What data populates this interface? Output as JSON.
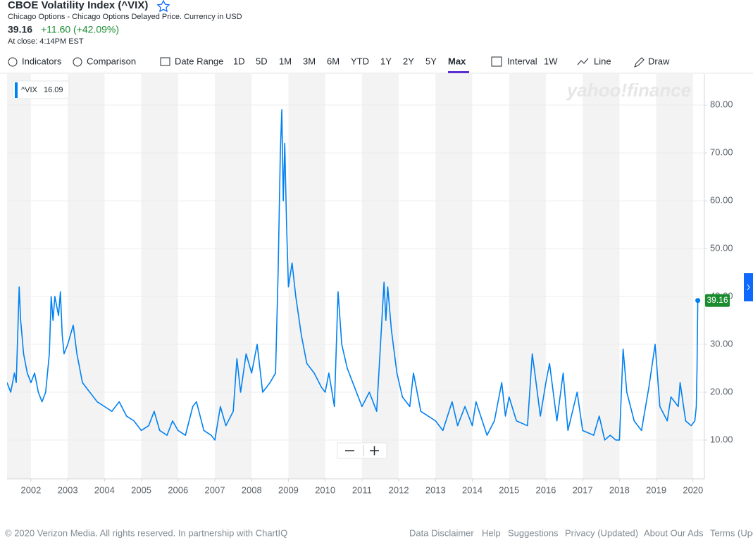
{
  "header": {
    "title": "CBOE Volatility Index (^VIX)",
    "subtitle": "Chicago Options - Chicago Options Delayed Price. Currency in USD",
    "price": "39.16",
    "change": "+11.60 (+42.09%)",
    "close_time": "At close: 4:14PM EST"
  },
  "toolbar": {
    "indicators": "Indicators",
    "comparison": "Comparison",
    "date_range": "Date Range",
    "ranges": [
      "1D",
      "5D",
      "1M",
      "3M",
      "6M",
      "YTD",
      "1Y",
      "2Y",
      "5Y",
      "Max"
    ],
    "interval": "Interval",
    "interval_value": "1W",
    "line": "Line",
    "draw": "Draw"
  },
  "watermark": "yahoo!finance",
  "chart_data": {
    "type": "line",
    "legend_value": "16.09",
    "xlim": [
      2001.35,
      2020.31
    ],
    "xticks": [
      2002,
      2003,
      2004,
      2005,
      2006,
      2007,
      2008,
      2009,
      2010,
      2011,
      2012,
      2013,
      2014,
      2015,
      2016,
      2017,
      2018,
      2019,
      2020
    ],
    "ylim": [
      1.9,
      86.5
    ],
    "yticks": [
      {
        "value": 10,
        "label": "10.00"
      },
      {
        "value": 20,
        "label": "20.00"
      },
      {
        "value": 30,
        "label": "30.00"
      },
      {
        "value": 40,
        "label": "40.00"
      },
      {
        "value": 50,
        "label": "50.00"
      },
      {
        "value": 60,
        "label": "60.00"
      },
      {
        "value": 70,
        "label": "70.00"
      },
      {
        "value": 80,
        "label": "80.00"
      }
    ],
    "grid": true,
    "series": [
      {
        "name": "^VIX",
        "color": "#0081f2",
        "x": [
          2001.35,
          2001.45,
          2001.55,
          2001.6,
          2001.68,
          2001.72,
          2001.8,
          2001.9,
          2002.0,
          2002.1,
          2002.2,
          2002.3,
          2002.4,
          2002.5,
          2002.55,
          2002.6,
          2002.65,
          2002.75,
          2002.8,
          2002.85,
          2002.9,
          2003.0,
          2003.15,
          2003.25,
          2003.4,
          2003.6,
          2003.8,
          2004.0,
          2004.2,
          2004.4,
          2004.6,
          2004.8,
          2005.0,
          2005.2,
          2005.35,
          2005.5,
          2005.7,
          2005.85,
          2006.0,
          2006.2,
          2006.4,
          2006.5,
          2006.7,
          2006.9,
          2007.0,
          2007.15,
          2007.3,
          2007.5,
          2007.6,
          2007.7,
          2007.85,
          2008.0,
          2008.15,
          2008.3,
          2008.5,
          2008.65,
          2008.72,
          2008.78,
          2008.82,
          2008.86,
          2008.9,
          2008.95,
          2009.0,
          2009.1,
          2009.2,
          2009.35,
          2009.5,
          2009.7,
          2009.9,
          2010.0,
          2010.1,
          2010.25,
          2010.35,
          2010.45,
          2010.6,
          2010.8,
          2011.0,
          2011.2,
          2011.4,
          2011.6,
          2011.65,
          2011.7,
          2011.8,
          2011.95,
          2012.1,
          2012.3,
          2012.4,
          2012.6,
          2012.8,
          2013.0,
          2013.2,
          2013.45,
          2013.6,
          2013.8,
          2014.0,
          2014.1,
          2014.4,
          2014.6,
          2014.8,
          2014.9,
          2015.0,
          2015.2,
          2015.5,
          2015.63,
          2015.7,
          2015.85,
          2016.0,
          2016.1,
          2016.3,
          2016.47,
          2016.6,
          2016.85,
          2017.0,
          2017.3,
          2017.45,
          2017.6,
          2017.75,
          2017.9,
          2018.0,
          2018.1,
          2018.2,
          2018.4,
          2018.6,
          2018.8,
          2018.97,
          2019.1,
          2019.3,
          2019.4,
          2019.6,
          2019.65,
          2019.8,
          2019.95,
          2020.05,
          2020.09,
          2020.11,
          2020.13
        ],
        "values": [
          22,
          20,
          24,
          22,
          42,
          35,
          28,
          24,
          22,
          24,
          20,
          18,
          20,
          28,
          40,
          35,
          40,
          36,
          41,
          32,
          28,
          30,
          34,
          28,
          22,
          20,
          18,
          17,
          16,
          18,
          15,
          14,
          12,
          13,
          16,
          12,
          11,
          14,
          12,
          11,
          17,
          18,
          12,
          11,
          10,
          17,
          13,
          16,
          27,
          20,
          28,
          24,
          30,
          20,
          22,
          24,
          45,
          70,
          79,
          60,
          72,
          55,
          42,
          47,
          40,
          32,
          26,
          24,
          21,
          20,
          24,
          17,
          41,
          30,
          25,
          21,
          17,
          20,
          16,
          43,
          35,
          42,
          33,
          24,
          19,
          17,
          24,
          16,
          15,
          14,
          12,
          18,
          13,
          17,
          13,
          18,
          11,
          14,
          22,
          15,
          19,
          14,
          13,
          28,
          24,
          15,
          22,
          26,
          14,
          24,
          12,
          20,
          12,
          11,
          15,
          10,
          11,
          10,
          10,
          29,
          20,
          14,
          12,
          21,
          30,
          17,
          14,
          19,
          17,
          22,
          14,
          13,
          14,
          17,
          25,
          39.16
        ]
      }
    ]
  },
  "footer": {
    "copyright": "© 2020 Verizon Media. All rights reserved. In partnership with ChartIQ",
    "links": [
      "Data Disclaimer",
      "Help",
      "Suggestions",
      "Privacy (Updated)",
      "About Our Ads",
      "Terms (Updated)"
    ]
  }
}
